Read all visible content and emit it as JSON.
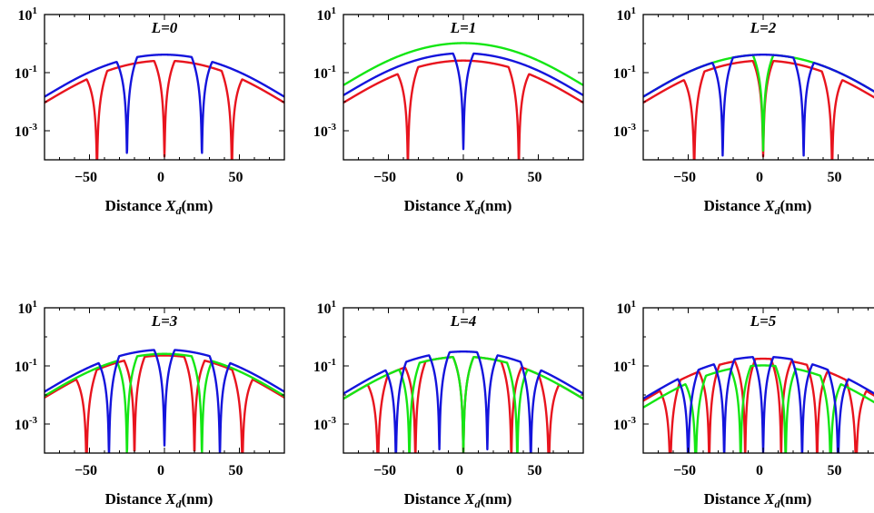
{
  "chart_data": [
    {
      "type": "line",
      "title": "L=0",
      "xlabel": "Distance X_d(nm)",
      "x_ticks": [
        "−50",
        "0",
        "50"
      ],
      "y_ticks": [
        "10^1",
        "10^-1",
        "10^-3"
      ],
      "yscale": "log",
      "xlim": [
        -80,
        80
      ],
      "ylim": [
        0.0001,
        10
      ],
      "series": [
        {
          "color": "#e8141e",
          "zeros": [
            -45,
            0,
            45
          ],
          "peak": 0.25
        },
        {
          "color": "#1414dc",
          "zeros": [
            -25,
            25
          ],
          "peak": 0.4
        }
      ]
    },
    {
      "type": "line",
      "title": "L=1",
      "xlabel": "Distance X_d(nm)",
      "x_ticks": [
        "−50",
        "0",
        "50"
      ],
      "y_ticks": [
        "10^1",
        "10^-1",
        "10^-3"
      ],
      "yscale": "log",
      "xlim": [
        -80,
        80
      ],
      "ylim": [
        0.0001,
        10
      ],
      "series": [
        {
          "color": "#e8141e",
          "zeros": [
            -37,
            37
          ],
          "peak": 0.25
        },
        {
          "color": "#14e614",
          "zeros": [],
          "peak": 1.0
        },
        {
          "color": "#1414dc",
          "zeros": [
            0
          ],
          "peak": 0.45
        }
      ]
    },
    {
      "type": "line",
      "title": "L=2",
      "xlabel": "Distance X_d(nm)",
      "x_ticks": [
        "−50",
        "0",
        "50"
      ],
      "y_ticks": [
        "10^1",
        "10^-1",
        "10^-3"
      ],
      "yscale": "log",
      "xlim": [
        -80,
        80
      ],
      "ylim": [
        0.0001,
        10
      ],
      "series": [
        {
          "color": "#e8141e",
          "zeros": [
            -46,
            0,
            46
          ],
          "peak": 0.25
        },
        {
          "color": "#14e614",
          "zeros": [
            0
          ],
          "peak": 0.4
        },
        {
          "color": "#1414dc",
          "zeros": [
            -27,
            27
          ],
          "peak": 0.4
        }
      ]
    },
    {
      "type": "line",
      "title": "L=3",
      "xlabel": "Distance X_d(nm)",
      "x_ticks": [
        "−50",
        "0",
        "50"
      ],
      "y_ticks": [
        "10^1",
        "10^-1",
        "10^-3"
      ],
      "yscale": "log",
      "xlim": [
        -80,
        80
      ],
      "ylim": [
        0.0001,
        10
      ],
      "series": [
        {
          "color": "#e8141e",
          "zeros": [
            -52,
            -20,
            20,
            52
          ],
          "peak": 0.22
        },
        {
          "color": "#14e614",
          "zeros": [
            -25,
            25
          ],
          "peak": 0.25
        },
        {
          "color": "#1414dc",
          "zeros": [
            -37,
            0,
            37
          ],
          "peak": 0.35
        }
      ]
    },
    {
      "type": "line",
      "title": "L=4",
      "xlabel": "Distance X_d(nm)",
      "x_ticks": [
        "−50",
        "0",
        "50"
      ],
      "y_ticks": [
        "10^1",
        "10^-1",
        "10^-3"
      ],
      "yscale": "log",
      "xlim": [
        -80,
        80
      ],
      "ylim": [
        0.0001,
        10
      ],
      "series": [
        {
          "color": "#e8141e",
          "zeros": [
            -57,
            -32,
            0,
            32,
            57
          ],
          "peak": 0.2
        },
        {
          "color": "#14e614",
          "zeros": [
            -36,
            0,
            36
          ],
          "peak": 0.2
        },
        {
          "color": "#1414dc",
          "zeros": [
            -45,
            -16,
            16,
            45
          ],
          "peak": 0.3
        }
      ]
    },
    {
      "type": "line",
      "title": "L=5",
      "xlabel": "Distance X_d(nm)",
      "x_ticks": [
        "−50",
        "0",
        "50"
      ],
      "y_ticks": [
        "10^1",
        "10^-1",
        "10^-3"
      ],
      "yscale": "log",
      "xlim": [
        -80,
        80
      ],
      "ylim": [
        0.0001,
        10
      ],
      "series": [
        {
          "color": "#e8141e",
          "zeros": [
            -62,
            -36,
            -12,
            12,
            36,
            62
          ],
          "peak": 0.17
        },
        {
          "color": "#14e614",
          "zeros": [
            -45,
            -15,
            15,
            45
          ],
          "peak": 0.1
        },
        {
          "color": "#1414dc",
          "zeros": [
            -50,
            -26,
            0,
            26,
            50
          ],
          "peak": 0.2
        }
      ]
    }
  ]
}
